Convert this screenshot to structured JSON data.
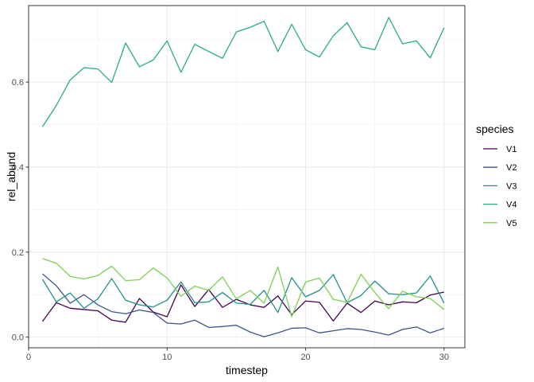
{
  "chart_data": {
    "type": "line",
    "title": "",
    "xlabel": "timestep",
    "ylabel": "rel_abund",
    "xlim": [
      0,
      31.5
    ],
    "ylim": [
      -0.025,
      0.78
    ],
    "x_ticks": [
      0,
      10,
      20,
      30
    ],
    "y_ticks": [
      0.0,
      0.2,
      0.4,
      0.6
    ],
    "y_tick_labels": [
      "0.0",
      "0.2",
      "0.4",
      "0.6"
    ],
    "x_tick_labels": [
      "0",
      "10",
      "20",
      "30"
    ],
    "grid": true,
    "legend": {
      "title": "species",
      "position": "right"
    },
    "x": [
      1,
      2,
      3,
      4,
      5,
      6,
      7,
      8,
      9,
      10,
      11,
      12,
      13,
      14,
      15,
      16,
      17,
      18,
      19,
      20,
      21,
      22,
      23,
      24,
      25,
      26,
      27,
      28,
      29,
      30
    ],
    "series": [
      {
        "name": "V1",
        "color": "#440154",
        "values": [
          0.037,
          0.081,
          0.068,
          0.065,
          0.062,
          0.04,
          0.035,
          0.091,
          0.059,
          0.048,
          0.123,
          0.072,
          0.112,
          0.07,
          0.089,
          0.076,
          0.07,
          0.097,
          0.053,
          0.085,
          0.082,
          0.038,
          0.08,
          0.058,
          0.085,
          0.076,
          0.083,
          0.081,
          0.099,
          0.106
        ]
      },
      {
        "name": "V2",
        "color": "#3B528B",
        "values": [
          0.149,
          0.121,
          0.08,
          0.1,
          0.076,
          0.06,
          0.055,
          0.064,
          0.058,
          0.033,
          0.031,
          0.04,
          0.023,
          0.025,
          0.028,
          0.012,
          0.001,
          0.01,
          0.021,
          0.022,
          0.01,
          0.015,
          0.02,
          0.018,
          0.012,
          0.005,
          0.018,
          0.024,
          0.01,
          0.021
        ]
      },
      {
        "name": "V3",
        "color": "#21908C",
        "values": [
          0.136,
          0.083,
          0.104,
          0.068,
          0.09,
          0.138,
          0.087,
          0.076,
          0.071,
          0.087,
          0.13,
          0.081,
          0.083,
          0.105,
          0.08,
          0.077,
          0.11,
          0.058,
          0.14,
          0.095,
          0.11,
          0.147,
          0.081,
          0.098,
          0.132,
          0.102,
          0.1,
          0.104,
          0.144,
          0.08
        ]
      },
      {
        "name": "V4",
        "color": "#27AD81",
        "values": [
          0.495,
          0.545,
          0.605,
          0.634,
          0.631,
          0.599,
          0.692,
          0.636,
          0.652,
          0.697,
          0.623,
          0.689,
          0.672,
          0.656,
          0.718,
          0.729,
          0.743,
          0.672,
          0.736,
          0.676,
          0.659,
          0.709,
          0.74,
          0.683,
          0.676,
          0.752,
          0.69,
          0.697,
          0.657,
          0.728
        ]
      },
      {
        "name": "V5",
        "color": "#7AD151",
        "values": [
          0.185,
          0.174,
          0.143,
          0.137,
          0.145,
          0.167,
          0.133,
          0.135,
          0.163,
          0.139,
          0.096,
          0.12,
          0.11,
          0.142,
          0.09,
          0.11,
          0.08,
          0.165,
          0.048,
          0.13,
          0.139,
          0.089,
          0.082,
          0.148,
          0.105,
          0.067,
          0.108,
          0.095,
          0.091,
          0.065
        ]
      }
    ]
  }
}
